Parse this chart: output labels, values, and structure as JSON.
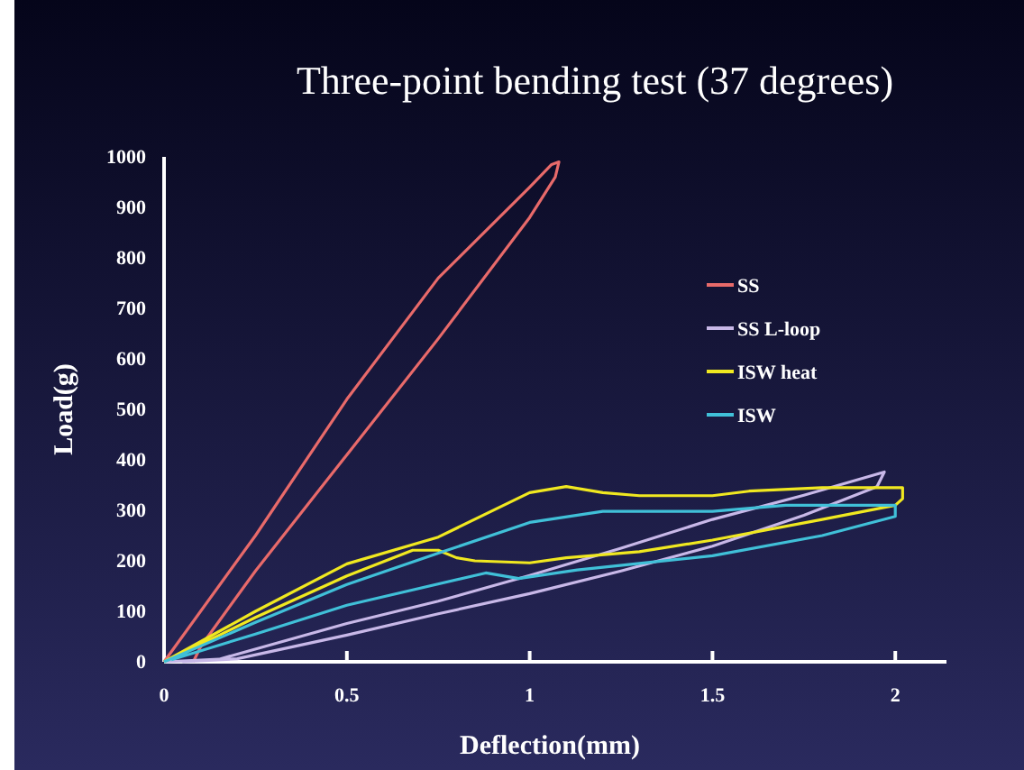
{
  "chart_data": {
    "type": "line",
    "title": "Three-point bending test (37 degrees)",
    "xlabel": "Deflection(mm)",
    "ylabel": "Load(g)",
    "xlim": [
      0,
      2.14
    ],
    "xticks": [
      0,
      0.5,
      1,
      1.5,
      2
    ],
    "ylim": [
      0,
      1000
    ],
    "yticks": [
      0,
      100,
      200,
      300,
      400,
      500,
      600,
      700,
      800,
      900,
      1000
    ],
    "grid": false,
    "legend": "right",
    "line_style": "solid",
    "marker": "none",
    "series": [
      {
        "name": "SS",
        "color": "#e86a6a",
        "x": [
          0,
          0.25,
          0.5,
          0.75,
          1.0,
          1.06,
          1.08,
          1.07,
          1.0,
          0.75,
          0.5,
          0.25,
          0.1,
          0.08
        ],
        "values": [
          0,
          250,
          520,
          760,
          940,
          985,
          990,
          960,
          880,
          640,
          410,
          180,
          30,
          0
        ]
      },
      {
        "name": "SS L-loop",
        "color": "#c8b8e8",
        "x": [
          0,
          0.15,
          0.5,
          0.75,
          1.0,
          1.25,
          1.5,
          1.75,
          1.97,
          1.95,
          1.75,
          1.5,
          1.25,
          1.0,
          0.75,
          0.5,
          0.2,
          0.05
        ],
        "values": [
          0,
          5,
          76,
          120,
          171,
          225,
          282,
          330,
          376,
          347,
          290,
          229,
          180,
          135,
          95,
          53,
          6,
          0
        ]
      },
      {
        "name": "ISW heat",
        "color": "#f0e820",
        "x": [
          0,
          0.25,
          0.5,
          0.75,
          1.0,
          1.1,
          1.2,
          1.3,
          1.5,
          1.6,
          1.8,
          2.02,
          2.02,
          2.0,
          1.8,
          1.5,
          1.3,
          1.1,
          1.0,
          0.85,
          0.8,
          0.75,
          0.68,
          0.5,
          0.25,
          0.02
        ],
        "values": [
          0,
          100,
          194,
          247,
          335,
          347,
          335,
          329,
          329,
          338,
          345,
          345,
          323,
          310,
          282,
          241,
          218,
          206,
          196,
          200,
          206,
          221,
          221,
          170,
          88,
          6
        ]
      },
      {
        "name": "ISW",
        "color": "#40c0d8",
        "x": [
          0,
          0.25,
          0.5,
          0.75,
          1.0,
          1.2,
          1.5,
          1.7,
          2.0,
          2.0,
          1.8,
          1.5,
          1.13,
          0.97,
          0.88,
          0.5,
          0.25,
          0.02
        ],
        "values": [
          0,
          78,
          153,
          215,
          276,
          298,
          298,
          310,
          310,
          288,
          250,
          210,
          182,
          165,
          176,
          112,
          55,
          4
        ]
      }
    ]
  }
}
